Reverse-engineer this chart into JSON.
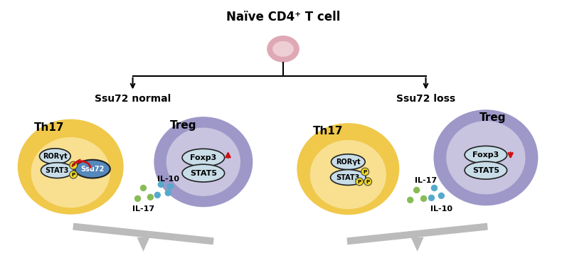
{
  "title": "Naïve CD4⁺ T cell",
  "label_normal": "Ssu72 normal",
  "label_loss": "Ssu72 loss",
  "bg_color": "#ffffff",
  "naive_cell_outer": "#dfa8b5",
  "naive_cell_inner": "#eeced5",
  "th17_outer_color": "#f0c84a",
  "th17_inner_color": "#f8e090",
  "treg_outer_color": "#9d98c8",
  "treg_inner_color": "#c8c4e0",
  "protein_fill": "#c8dde8",
  "protein_edge": "#222222",
  "ssu72_fill": "#5588bb",
  "ssu72_edge": "#222222",
  "phospho_fill": "#f0d820",
  "phospho_edge": "#444444",
  "red_color": "#cc1111",
  "green_dot": "#88bb55",
  "blue_dot": "#55aacc",
  "gray_beam": "#bbbbbb",
  "black": "#000000",
  "label_fs": 10,
  "title_fs": 12,
  "cell_label_fs": 11,
  "protein_fs": 7,
  "dot_label_fs": 8
}
